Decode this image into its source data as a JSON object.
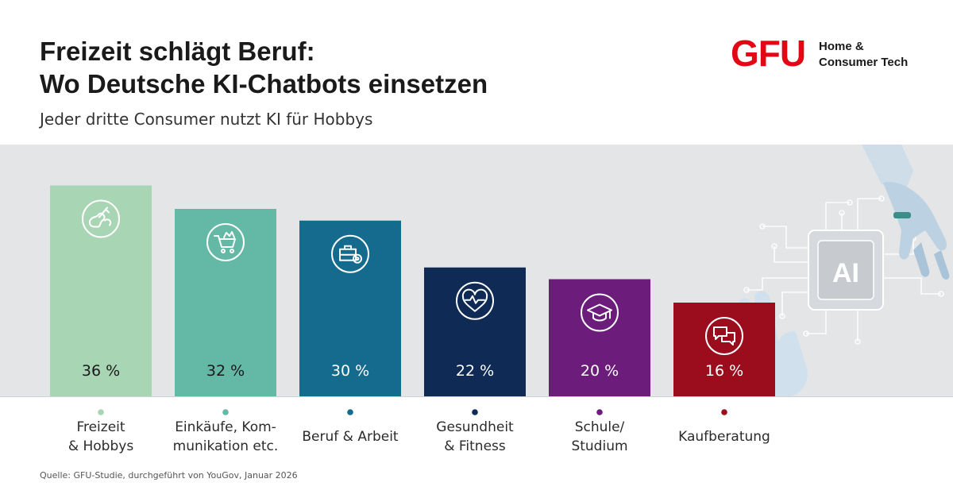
{
  "header": {
    "title_line1": "Freizeit schlägt Beruf:",
    "title_line2": "Wo Deutsche KI-Chatbots einsetzen",
    "subtitle": "Jeder dritte Consumer nutzt KI für Hobbys"
  },
  "logo": {
    "mark": "GFU",
    "text_line1": "Home &",
    "text_line2": "Consumer Tech",
    "color": "#e30613"
  },
  "illustration": {
    "chip_text": "AI"
  },
  "chart_data": {
    "type": "bar",
    "title": "Freizeit schlägt Beruf: Wo Deutsche KI-Chatbots einsetzen",
    "subtitle": "Jeder dritte Consumer nutzt KI für Hobbys",
    "xlabel": "",
    "ylabel": "",
    "ylim": [
      0,
      40
    ],
    "unit": "%",
    "categories": [
      [
        "Freizeit",
        "& Hobbys"
      ],
      [
        "Einkäufe, Kom-",
        "munikation etc."
      ],
      [
        "Beruf & Arbeit"
      ],
      [
        "Gesundheit",
        "& Fitness"
      ],
      [
        "Schule/",
        "Studium"
      ],
      [
        "Kaufberatung"
      ]
    ],
    "values": [
      36,
      32,
      30,
      22,
      20,
      16
    ],
    "value_labels": [
      "36 %",
      "32 %",
      "30 %",
      "22 %",
      "20 %",
      "16 %"
    ],
    "colors": [
      "#a8d5b3",
      "#64b8a6",
      "#146b8e",
      "#0e2a55",
      "#6c1d7b",
      "#9b0c1c"
    ],
    "label_colors": [
      "#1a1a1a",
      "#1a1a1a",
      "#ffffff",
      "#ffffff",
      "#ffffff",
      "#ffffff"
    ],
    "icons": [
      "guitar-hobby-icon",
      "shopping-cart-icon",
      "briefcase-gear-icon",
      "heartbeat-icon",
      "graduation-cap-icon",
      "chat-bubbles-icon"
    ]
  },
  "source": "Quelle: GFU-Studie, durchgeführt von YouGov, Januar 2026"
}
